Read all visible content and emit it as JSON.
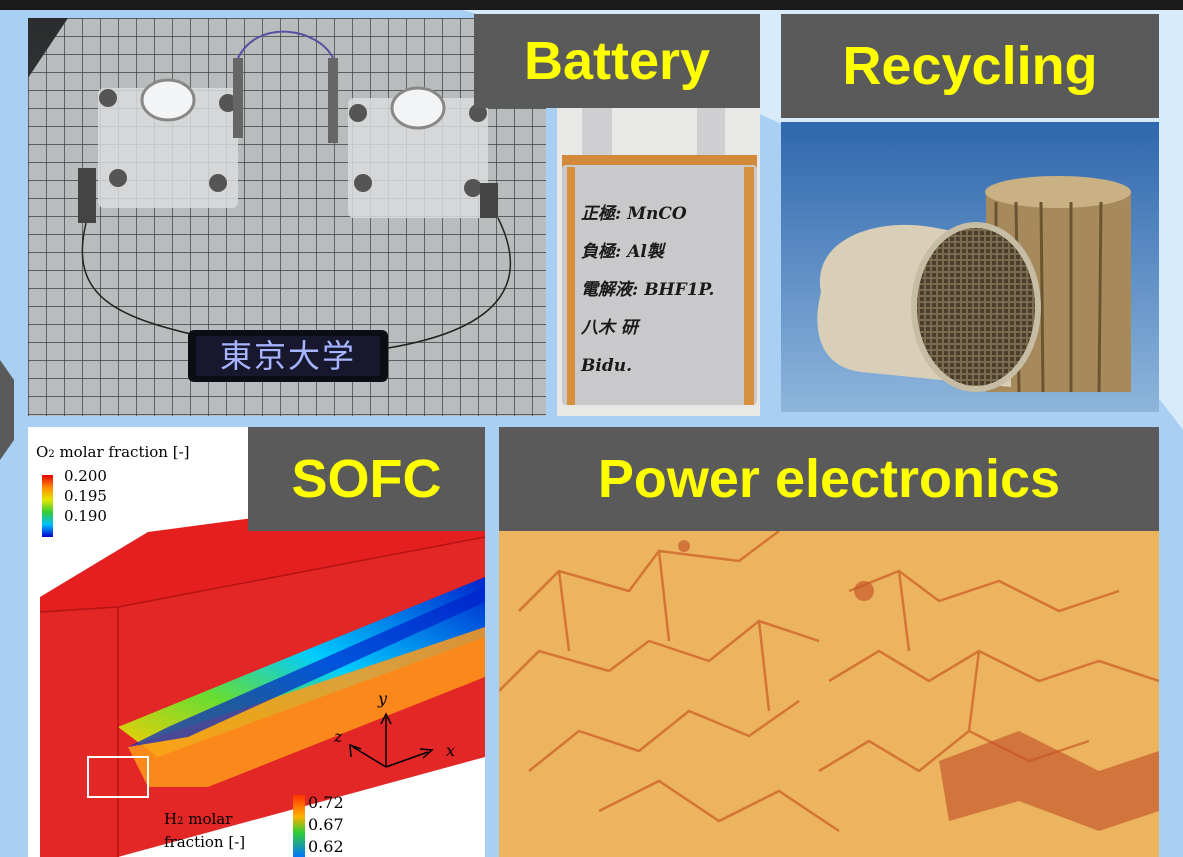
{
  "panels": {
    "robot": {
      "led_text": "東京大学"
    },
    "battery": {
      "label": "Battery",
      "note_lines": [
        "正極: MnCO",
        "負極: Al製",
        "電解液: BHF1P.",
        "八木 研",
        "Bidu."
      ]
    },
    "recycling": {
      "label": "Recycling"
    },
    "sofc": {
      "label": "SOFC",
      "o2_legend": {
        "title_prefix": "O",
        "title_sub": "2",
        "title_suffix": " molar fraction [-]",
        "ticks": [
          "0.200",
          "0.195",
          "0.190"
        ]
      },
      "h2_legend": {
        "line1_prefix": "H",
        "line1_sub": "2",
        "line1_suffix": " molar",
        "line2": "fraction [-]",
        "ticks": [
          "0.72",
          "0.67",
          "0.62"
        ]
      },
      "axes": {
        "x": "x",
        "y": "y",
        "z": "z"
      }
    },
    "power": {
      "label": "Power electronics"
    }
  },
  "colors": {
    "label_bg": "#5a5a5a",
    "label_text": "#ffff00",
    "background": "#a9cff3"
  }
}
